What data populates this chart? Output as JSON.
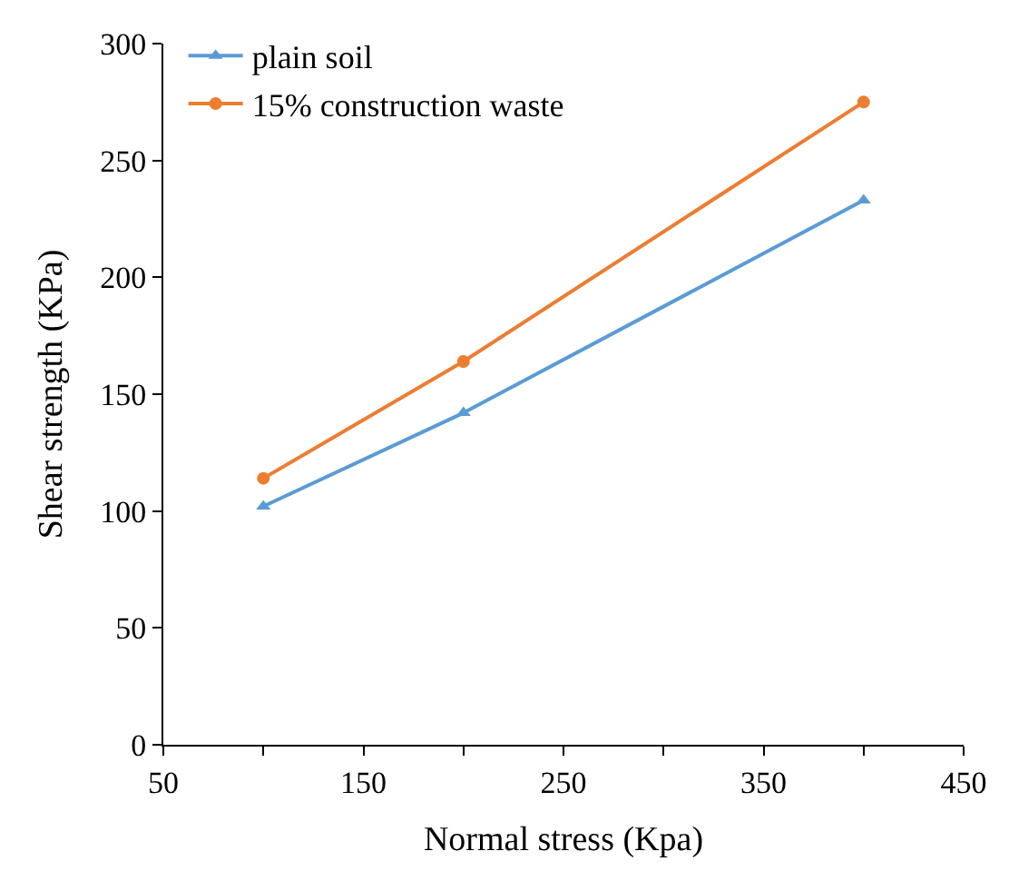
{
  "chart_data": {
    "type": "line",
    "xlabel": "Normal stress (Kpa)",
    "ylabel": "Shear strength (KPa)",
    "x": [
      100,
      200,
      400
    ],
    "series": [
      {
        "name": "plain soil",
        "color": "#5b9bd5",
        "marker": "triangle",
        "values": [
          102,
          142,
          233
        ]
      },
      {
        "name": "15% construction waste",
        "color": "#ed7d31",
        "marker": "circle",
        "values": [
          114,
          164,
          275
        ]
      }
    ],
    "xlim": [
      50,
      450
    ],
    "xticks": [
      50,
      {
        "value": 100,
        "label": null
      },
      150,
      {
        "value": 200,
        "label": null
      },
      250,
      {
        "value": 300,
        "label": null
      },
      350,
      {
        "value": 400,
        "label": null
      },
      450
    ],
    "ylim": [
      0,
      300
    ],
    "yticks": [
      0,
      50,
      100,
      150,
      200,
      250,
      300
    ],
    "legend": "top left",
    "line_style": "solid"
  }
}
